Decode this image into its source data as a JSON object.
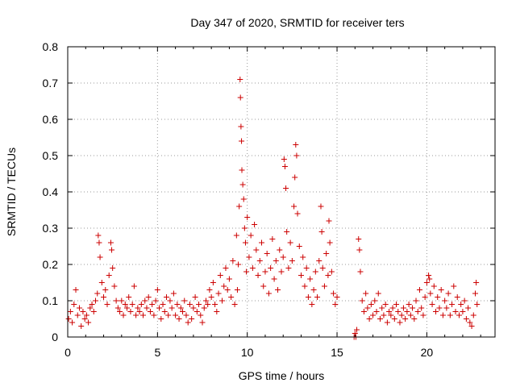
{
  "chart_data": {
    "type": "scatter",
    "title": "Day 347 of 2020, SRMTID for receiver ters",
    "xlabel": "GPS time / hours",
    "ylabel": "SRMTID / TECUs",
    "xlim": [
      0,
      23.8
    ],
    "ylim": [
      0,
      0.8
    ],
    "xticks": [
      0,
      5,
      10,
      15,
      20
    ],
    "yticks": [
      0,
      0.1,
      0.2,
      0.3,
      0.4,
      0.5,
      0.6,
      0.7,
      0.8
    ],
    "grid": true,
    "marker": "+",
    "series_color": "#cc0000",
    "series": [
      {
        "name": "SRMTID",
        "points": [
          [
            0.05,
            0.05
          ],
          [
            0.15,
            0.07
          ],
          [
            0.25,
            0.04
          ],
          [
            0.35,
            0.09
          ],
          [
            0.45,
            0.13
          ],
          [
            0.55,
            0.06
          ],
          [
            0.65,
            0.08
          ],
          [
            0.75,
            0.03
          ],
          [
            0.85,
            0.07
          ],
          [
            0.95,
            0.05
          ],
          [
            1.05,
            0.06
          ],
          [
            1.15,
            0.04
          ],
          [
            1.25,
            0.08
          ],
          [
            1.35,
            0.09
          ],
          [
            1.45,
            0.07
          ],
          [
            1.55,
            0.1
          ],
          [
            1.65,
            0.12
          ],
          [
            1.7,
            0.28
          ],
          [
            1.75,
            0.26
          ],
          [
            1.8,
            0.22
          ],
          [
            1.9,
            0.15
          ],
          [
            2.0,
            0.11
          ],
          [
            2.1,
            0.13
          ],
          [
            2.2,
            0.09
          ],
          [
            2.3,
            0.17
          ],
          [
            2.4,
            0.26
          ],
          [
            2.45,
            0.24
          ],
          [
            2.5,
            0.19
          ],
          [
            2.6,
            0.14
          ],
          [
            2.7,
            0.1
          ],
          [
            2.8,
            0.08
          ],
          [
            2.9,
            0.07
          ],
          [
            3.0,
            0.1
          ],
          [
            3.1,
            0.06
          ],
          [
            3.2,
            0.09
          ],
          [
            3.3,
            0.08
          ],
          [
            3.4,
            0.11
          ],
          [
            3.5,
            0.07
          ],
          [
            3.6,
            0.09
          ],
          [
            3.7,
            0.14
          ],
          [
            3.8,
            0.06
          ],
          [
            3.9,
            0.08
          ],
          [
            4.0,
            0.07
          ],
          [
            4.1,
            0.09
          ],
          [
            4.2,
            0.06
          ],
          [
            4.3,
            0.1
          ],
          [
            4.4,
            0.08
          ],
          [
            4.5,
            0.11
          ],
          [
            4.6,
            0.07
          ],
          [
            4.7,
            0.09
          ],
          [
            4.8,
            0.06
          ],
          [
            4.9,
            0.1
          ],
          [
            5.0,
            0.13
          ],
          [
            5.1,
            0.08
          ],
          [
            5.2,
            0.05
          ],
          [
            5.3,
            0.09
          ],
          [
            5.4,
            0.07
          ],
          [
            5.5,
            0.11
          ],
          [
            5.6,
            0.06
          ],
          [
            5.7,
            0.1
          ],
          [
            5.8,
            0.08
          ],
          [
            5.9,
            0.12
          ],
          [
            6.0,
            0.06
          ],
          [
            6.1,
            0.09
          ],
          [
            6.2,
            0.05
          ],
          [
            6.3,
            0.08
          ],
          [
            6.4,
            0.07
          ],
          [
            6.5,
            0.1
          ],
          [
            6.6,
            0.06
          ],
          [
            6.7,
            0.04
          ],
          [
            6.8,
            0.09
          ],
          [
            6.9,
            0.05
          ],
          [
            7.0,
            0.08
          ],
          [
            7.1,
            0.11
          ],
          [
            7.2,
            0.07
          ],
          [
            7.3,
            0.09
          ],
          [
            7.4,
            0.06
          ],
          [
            7.5,
            0.04
          ],
          [
            7.6,
            0.08
          ],
          [
            7.7,
            0.1
          ],
          [
            7.8,
            0.09
          ],
          [
            7.9,
            0.13
          ],
          [
            8.0,
            0.11
          ],
          [
            8.1,
            0.15
          ],
          [
            8.2,
            0.09
          ],
          [
            8.3,
            0.07
          ],
          [
            8.4,
            0.12
          ],
          [
            8.5,
            0.17
          ],
          [
            8.6,
            0.1
          ],
          [
            8.7,
            0.14
          ],
          [
            8.8,
            0.19
          ],
          [
            8.9,
            0.13
          ],
          [
            9.0,
            0.16
          ],
          [
            9.1,
            0.11
          ],
          [
            9.2,
            0.21
          ],
          [
            9.3,
            0.09
          ],
          [
            9.4,
            0.28
          ],
          [
            9.45,
            0.13
          ],
          [
            9.5,
            0.2
          ],
          [
            9.55,
            0.36
          ],
          [
            9.6,
            0.71
          ],
          [
            9.62,
            0.66
          ],
          [
            9.65,
            0.58
          ],
          [
            9.68,
            0.54
          ],
          [
            9.7,
            0.46
          ],
          [
            9.75,
            0.42
          ],
          [
            9.8,
            0.38
          ],
          [
            9.85,
            0.3
          ],
          [
            9.9,
            0.26
          ],
          [
            9.95,
            0.18
          ],
          [
            10.0,
            0.33
          ],
          [
            10.1,
            0.22
          ],
          [
            10.2,
            0.28
          ],
          [
            10.3,
            0.19
          ],
          [
            10.4,
            0.31
          ],
          [
            10.5,
            0.24
          ],
          [
            10.6,
            0.17
          ],
          [
            10.7,
            0.21
          ],
          [
            10.8,
            0.26
          ],
          [
            10.9,
            0.14
          ],
          [
            11.0,
            0.18
          ],
          [
            11.1,
            0.23
          ],
          [
            11.2,
            0.12
          ],
          [
            11.3,
            0.19
          ],
          [
            11.4,
            0.27
          ],
          [
            11.5,
            0.16
          ],
          [
            11.6,
            0.21
          ],
          [
            11.7,
            0.13
          ],
          [
            11.8,
            0.24
          ],
          [
            11.9,
            0.18
          ],
          [
            12.0,
            0.22
          ],
          [
            12.05,
            0.49
          ],
          [
            12.1,
            0.47
          ],
          [
            12.15,
            0.41
          ],
          [
            12.2,
            0.29
          ],
          [
            12.3,
            0.19
          ],
          [
            12.4,
            0.26
          ],
          [
            12.5,
            0.21
          ],
          [
            12.6,
            0.36
          ],
          [
            12.65,
            0.44
          ],
          [
            12.7,
            0.53
          ],
          [
            12.75,
            0.5
          ],
          [
            12.8,
            0.34
          ],
          [
            12.9,
            0.25
          ],
          [
            13.0,
            0.17
          ],
          [
            13.1,
            0.22
          ],
          [
            13.2,
            0.14
          ],
          [
            13.3,
            0.19
          ],
          [
            13.4,
            0.11
          ],
          [
            13.5,
            0.16
          ],
          [
            13.6,
            0.09
          ],
          [
            13.7,
            0.13
          ],
          [
            13.8,
            0.18
          ],
          [
            13.9,
            0.11
          ],
          [
            14.0,
            0.21
          ],
          [
            14.1,
            0.36
          ],
          [
            14.15,
            0.29
          ],
          [
            14.2,
            0.19
          ],
          [
            14.3,
            0.14
          ],
          [
            14.4,
            0.23
          ],
          [
            14.5,
            0.17
          ],
          [
            14.55,
            0.32
          ],
          [
            14.6,
            0.26
          ],
          [
            14.7,
            0.18
          ],
          [
            14.8,
            0.12
          ],
          [
            14.9,
            0.09
          ],
          [
            15.0,
            0.11
          ],
          [
            15.95,
            0.0
          ],
          [
            16.0,
            0.01
          ],
          [
            16.05,
            0.0
          ],
          [
            16.1,
            0.02
          ],
          [
            16.2,
            0.27
          ],
          [
            16.25,
            0.24
          ],
          [
            16.3,
            0.18
          ],
          [
            16.4,
            0.1
          ],
          [
            16.5,
            0.07
          ],
          [
            16.6,
            0.12
          ],
          [
            16.7,
            0.08
          ],
          [
            16.8,
            0.05
          ],
          [
            16.9,
            0.09
          ],
          [
            17.0,
            0.06
          ],
          [
            17.1,
            0.1
          ],
          [
            17.2,
            0.07
          ],
          [
            17.3,
            0.12
          ],
          [
            17.4,
            0.05
          ],
          [
            17.5,
            0.08
          ],
          [
            17.6,
            0.06
          ],
          [
            17.7,
            0.09
          ],
          [
            17.8,
            0.04
          ],
          [
            17.9,
            0.07
          ],
          [
            18.0,
            0.06
          ],
          [
            18.1,
            0.08
          ],
          [
            18.2,
            0.05
          ],
          [
            18.3,
            0.09
          ],
          [
            18.4,
            0.07
          ],
          [
            18.5,
            0.04
          ],
          [
            18.6,
            0.06
          ],
          [
            18.7,
            0.08
          ],
          [
            18.8,
            0.05
          ],
          [
            18.9,
            0.07
          ],
          [
            19.0,
            0.09
          ],
          [
            19.1,
            0.06
          ],
          [
            19.2,
            0.08
          ],
          [
            19.3,
            0.05
          ],
          [
            19.4,
            0.1
          ],
          [
            19.5,
            0.07
          ],
          [
            19.6,
            0.13
          ],
          [
            19.7,
            0.08
          ],
          [
            19.8,
            0.06
          ],
          [
            19.9,
            0.11
          ],
          [
            20.0,
            0.15
          ],
          [
            20.1,
            0.17
          ],
          [
            20.15,
            0.16
          ],
          [
            20.2,
            0.12
          ],
          [
            20.3,
            0.09
          ],
          [
            20.4,
            0.14
          ],
          [
            20.5,
            0.07
          ],
          [
            20.6,
            0.11
          ],
          [
            20.7,
            0.08
          ],
          [
            20.8,
            0.13
          ],
          [
            20.9,
            0.06
          ],
          [
            21.0,
            0.1
          ],
          [
            21.1,
            0.08
          ],
          [
            21.2,
            0.12
          ],
          [
            21.3,
            0.06
          ],
          [
            21.4,
            0.09
          ],
          [
            21.5,
            0.14
          ],
          [
            21.6,
            0.07
          ],
          [
            21.7,
            0.11
          ],
          [
            21.8,
            0.06
          ],
          [
            21.9,
            0.09
          ],
          [
            22.0,
            0.07
          ],
          [
            22.1,
            0.1
          ],
          [
            22.2,
            0.05
          ],
          [
            22.3,
            0.08
          ],
          [
            22.4,
            0.04
          ],
          [
            22.5,
            0.03
          ],
          [
            22.6,
            0.06
          ],
          [
            22.7,
            0.12
          ],
          [
            22.75,
            0.15
          ],
          [
            22.8,
            0.09
          ]
        ]
      }
    ]
  }
}
